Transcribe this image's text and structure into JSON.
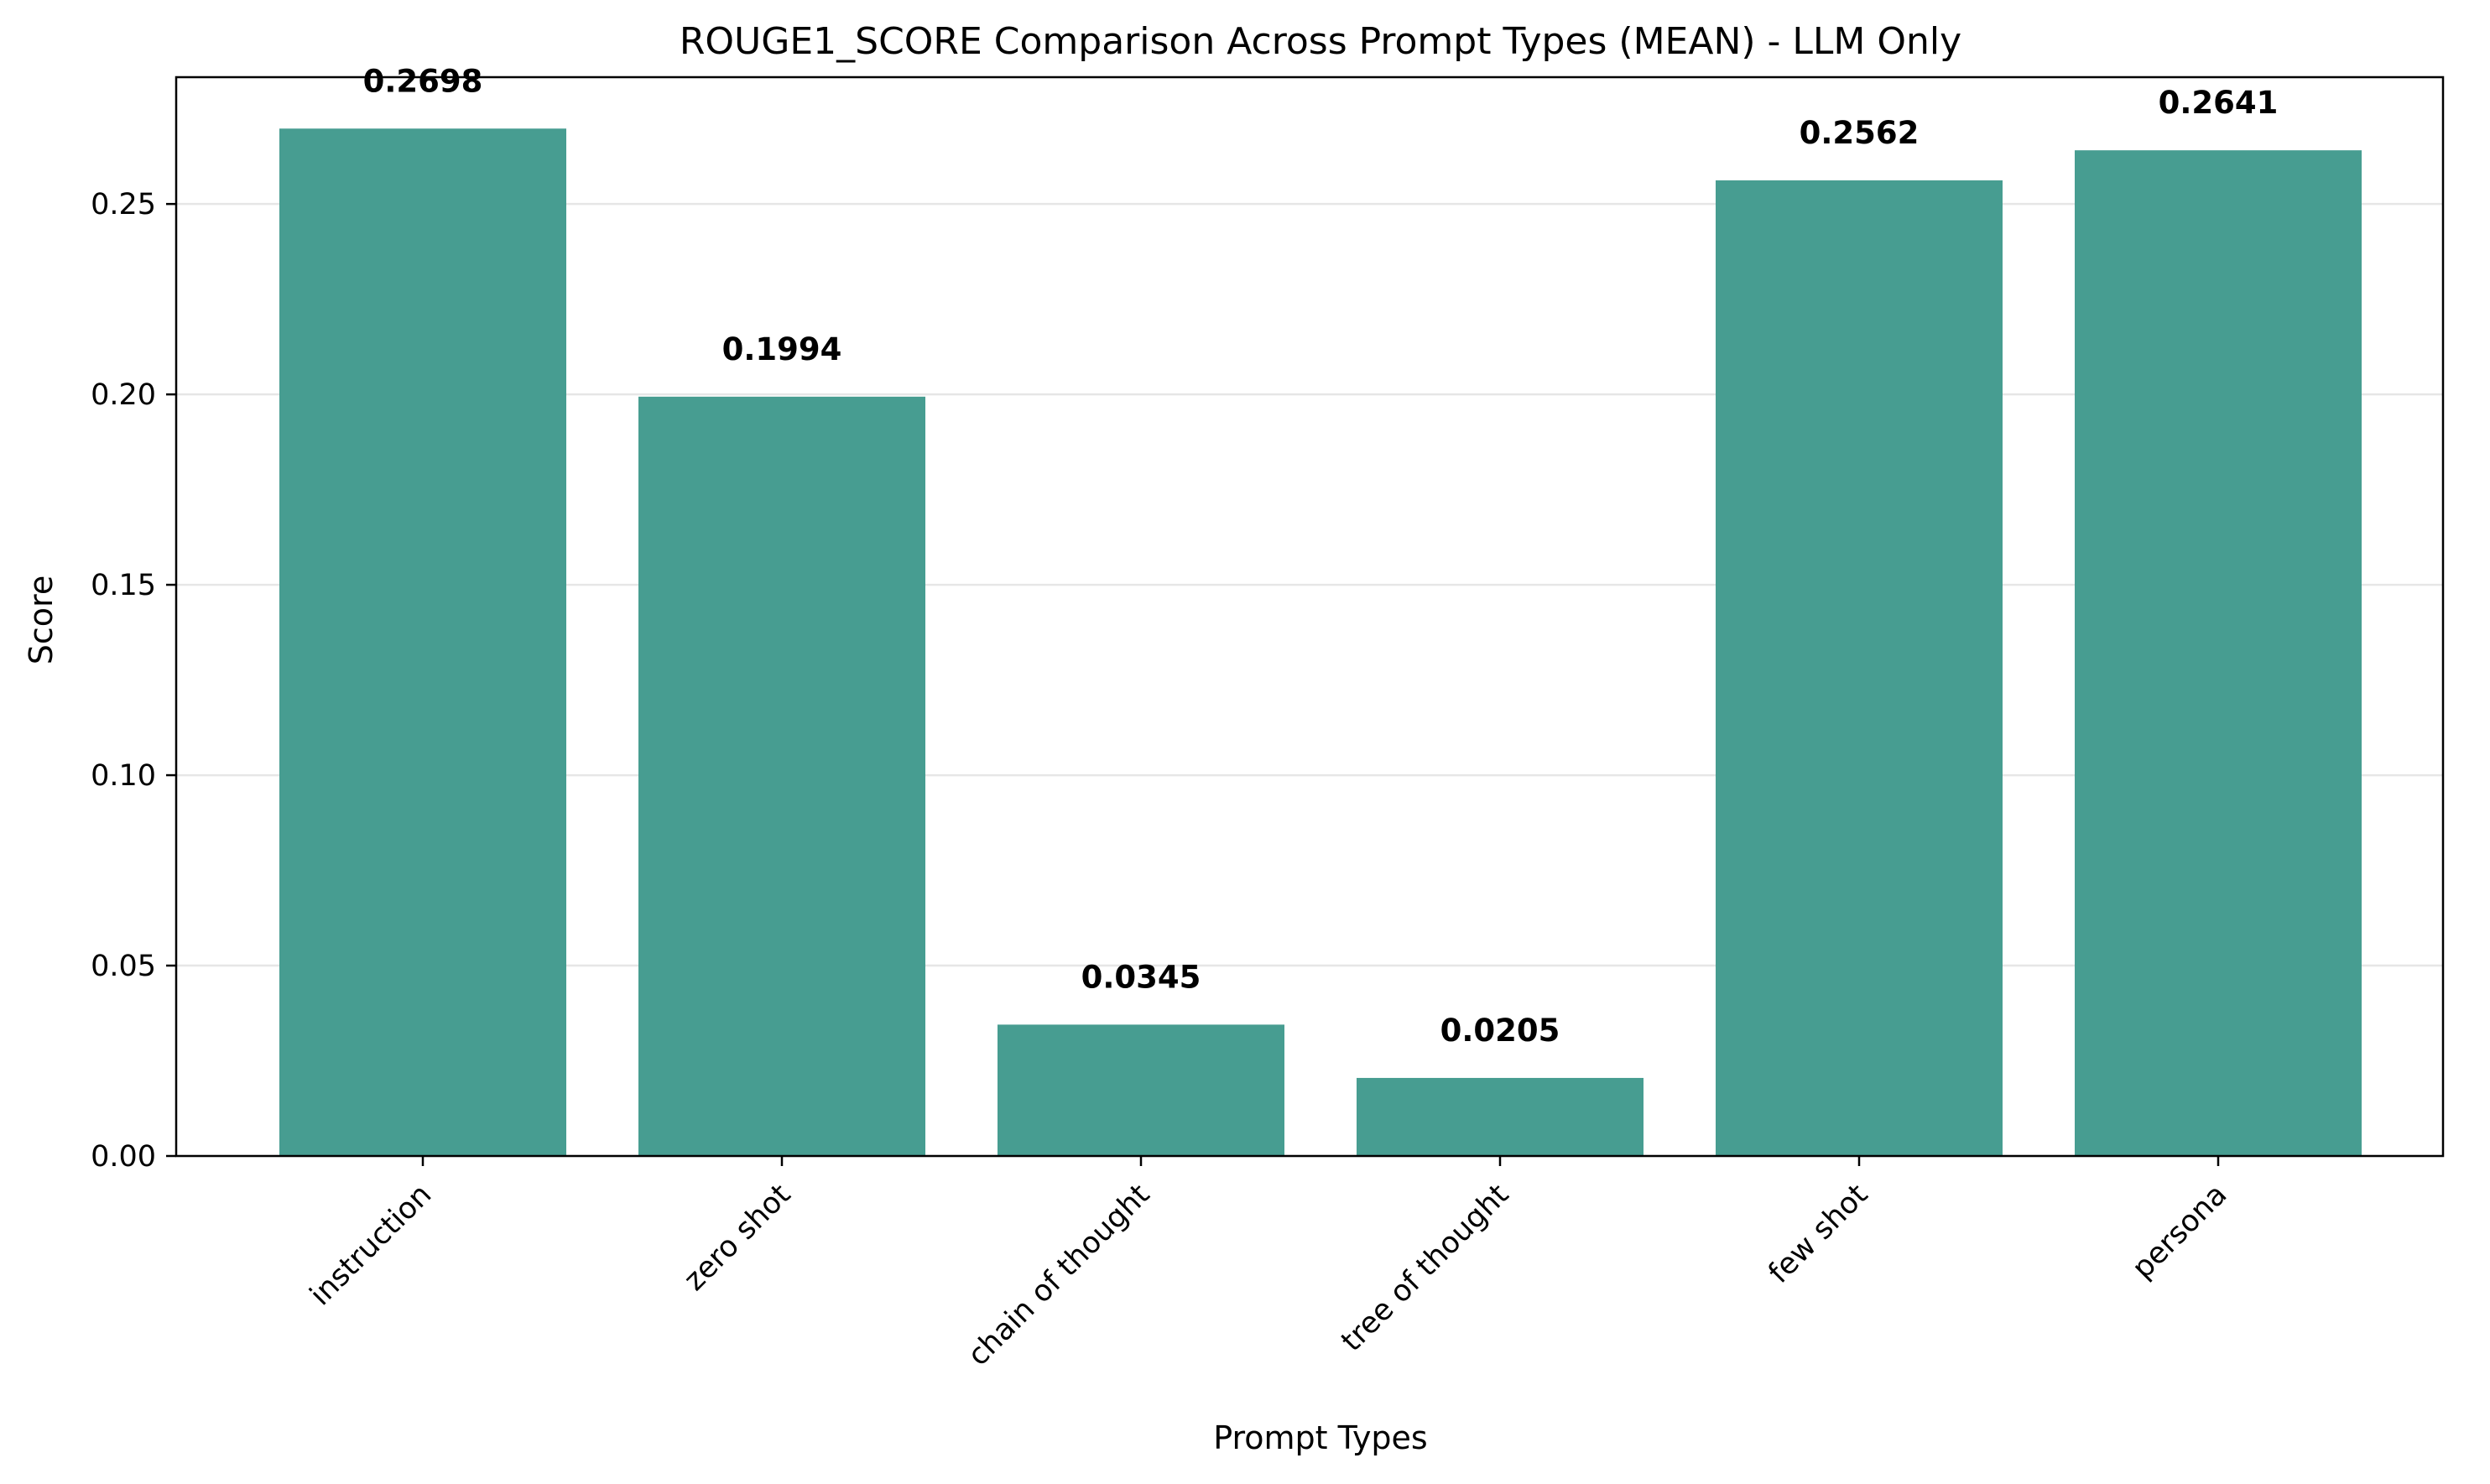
{
  "chart_data": {
    "type": "bar",
    "title": "ROUGE1_SCORE Comparison Across Prompt Types (MEAN) - LLM Only",
    "xlabel": "Prompt Types",
    "ylabel": "Score",
    "categories": [
      "instruction",
      "zero shot",
      "chain of thought",
      "tree of thought",
      "few shot",
      "persona"
    ],
    "values": [
      0.2698,
      0.1994,
      0.0345,
      0.0205,
      0.2562,
      0.2641
    ],
    "value_labels": [
      "0.2698",
      "0.1994",
      "0.0345",
      "0.0205",
      "0.2562",
      "0.2641"
    ],
    "ylim": [
      0,
      0.2833
    ],
    "yticks": [
      0.0,
      0.05,
      0.1,
      0.15,
      0.2,
      0.25
    ],
    "ytick_labels": [
      "0.00",
      "0.05",
      "0.10",
      "0.15",
      "0.20",
      "0.25"
    ],
    "grid": "y-only",
    "legend": "none",
    "bar_color": "#479D91",
    "grid_color": "#E6E6E6",
    "axis_color": "#000000"
  }
}
